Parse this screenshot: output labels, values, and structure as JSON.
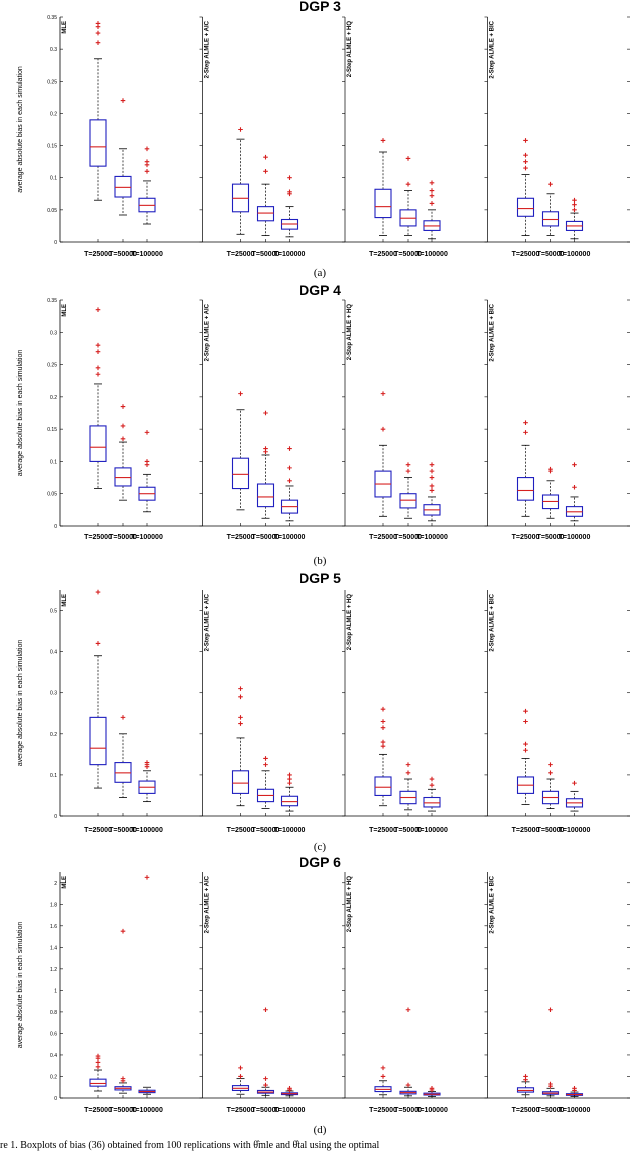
{
  "caption": "re 1. Boxplots of bias (36) obtained from 100 replications with  θ̂mle and θ̂tal using the optimal",
  "colors": {
    "box": "#1f1fbf",
    "median": "#d62020",
    "outlier": "#d62020",
    "whisker": "#000000"
  },
  "chart_data": [
    {
      "type": "boxplot",
      "title": "DGP 3",
      "subtitle": "(a)",
      "ylabel": "average absolute bias in each simulation",
      "ylim": [
        0,
        0.35
      ],
      "yticks": [
        0,
        0.05,
        0.1,
        0.15,
        0.2,
        0.25,
        0.3,
        0.35
      ],
      "ytick_labels": [
        "0",
        "0.05",
        "0.1",
        "0.15",
        "0.2",
        "0.25",
        "0.3",
        "0.35"
      ],
      "categories": [
        "T=25000",
        "T=50000",
        "T=100000"
      ],
      "panels": [
        {
          "label": "MLE",
          "boxes": [
            {
              "min": 0.065,
              "q1": 0.118,
              "median": 0.148,
              "q3": 0.19,
              "max": 0.285,
              "outliers": [
                0.31,
                0.325,
                0.335,
                0.34
              ]
            },
            {
              "min": 0.042,
              "q1": 0.07,
              "median": 0.085,
              "q3": 0.102,
              "max": 0.145,
              "outliers": [
                0.22
              ]
            },
            {
              "min": 0.028,
              "q1": 0.047,
              "median": 0.057,
              "q3": 0.068,
              "max": 0.095,
              "outliers": [
                0.11,
                0.12,
                0.125,
                0.145
              ]
            }
          ]
        },
        {
          "label": "2-Step ALMLE + AIC",
          "boxes": [
            {
              "min": 0.012,
              "q1": 0.047,
              "median": 0.068,
              "q3": 0.09,
              "max": 0.16,
              "outliers": [
                0.175
              ]
            },
            {
              "min": 0.01,
              "q1": 0.033,
              "median": 0.045,
              "q3": 0.055,
              "max": 0.09,
              "outliers": [
                0.11,
                0.132
              ]
            },
            {
              "min": 0.008,
              "q1": 0.02,
              "median": 0.028,
              "q3": 0.035,
              "max": 0.055,
              "outliers": [
                0.075,
                0.078,
                0.1
              ]
            }
          ]
        },
        {
          "label": "2-Step ALMLE + HQ",
          "boxes": [
            {
              "min": 0.01,
              "q1": 0.038,
              "median": 0.055,
              "q3": 0.082,
              "max": 0.14,
              "outliers": [
                0.158
              ]
            },
            {
              "min": 0.01,
              "q1": 0.025,
              "median": 0.037,
              "q3": 0.05,
              "max": 0.08,
              "outliers": [
                0.09,
                0.13
              ]
            },
            {
              "min": 0.005,
              "q1": 0.018,
              "median": 0.025,
              "q3": 0.033,
              "max": 0.05,
              "outliers": [
                0.06,
                0.072,
                0.08,
                0.092
              ]
            }
          ]
        },
        {
          "label": "2-Step ALMLE + BIC",
          "boxes": [
            {
              "min": 0.01,
              "q1": 0.04,
              "median": 0.052,
              "q3": 0.068,
              "max": 0.105,
              "outliers": [
                0.115,
                0.125,
                0.135,
                0.158
              ]
            },
            {
              "min": 0.01,
              "q1": 0.025,
              "median": 0.035,
              "q3": 0.047,
              "max": 0.075,
              "outliers": [
                0.09
              ]
            },
            {
              "min": 0.005,
              "q1": 0.018,
              "median": 0.025,
              "q3": 0.032,
              "max": 0.045,
              "outliers": [
                0.05,
                0.058,
                0.065
              ]
            }
          ]
        }
      ]
    },
    {
      "type": "boxplot",
      "title": "DGP 4",
      "subtitle": "(b)",
      "ylabel": "average absolute bias in each simulation",
      "ylim": [
        0,
        0.35
      ],
      "yticks": [
        0,
        0.05,
        0.1,
        0.15,
        0.2,
        0.25,
        0.3,
        0.35
      ],
      "ytick_labels": [
        "0",
        "0.05",
        "0.1",
        "0.15",
        "0.2",
        "0.25",
        "0.3",
        "0.35"
      ],
      "categories": [
        "T=25000",
        "T=50000",
        "T=100000"
      ],
      "panels": [
        {
          "label": "MLE",
          "boxes": [
            {
              "min": 0.058,
              "q1": 0.1,
              "median": 0.122,
              "q3": 0.155,
              "max": 0.22,
              "outliers": [
                0.235,
                0.245,
                0.27,
                0.28,
                0.335
              ]
            },
            {
              "min": 0.04,
              "q1": 0.062,
              "median": 0.075,
              "q3": 0.09,
              "max": 0.13,
              "outliers": [
                0.135,
                0.155,
                0.185
              ]
            },
            {
              "min": 0.022,
              "q1": 0.04,
              "median": 0.05,
              "q3": 0.06,
              "max": 0.08,
              "outliers": [
                0.095,
                0.1,
                0.145
              ]
            }
          ]
        },
        {
          "label": "2-Step ALMLE + AIC",
          "boxes": [
            {
              "min": 0.025,
              "q1": 0.058,
              "median": 0.08,
              "q3": 0.105,
              "max": 0.18,
              "outliers": [
                0.205
              ]
            },
            {
              "min": 0.012,
              "q1": 0.03,
              "median": 0.045,
              "q3": 0.065,
              "max": 0.11,
              "outliers": [
                0.115,
                0.12,
                0.175
              ]
            },
            {
              "min": 0.008,
              "q1": 0.02,
              "median": 0.03,
              "q3": 0.04,
              "max": 0.062,
              "outliers": [
                0.07,
                0.09,
                0.12
              ]
            }
          ]
        },
        {
          "label": "2-Step ALMLE + HQ",
          "boxes": [
            {
              "min": 0.015,
              "q1": 0.045,
              "median": 0.065,
              "q3": 0.085,
              "max": 0.125,
              "outliers": [
                0.15,
                0.205
              ]
            },
            {
              "min": 0.012,
              "q1": 0.028,
              "median": 0.04,
              "q3": 0.05,
              "max": 0.075,
              "outliers": [
                0.085,
                0.095
              ]
            },
            {
              "min": 0.008,
              "q1": 0.017,
              "median": 0.025,
              "q3": 0.033,
              "max": 0.045,
              "outliers": [
                0.055,
                0.062,
                0.075,
                0.085,
                0.095
              ]
            }
          ]
        },
        {
          "label": "2-Step ALMLE + BIC",
          "boxes": [
            {
              "min": 0.015,
              "q1": 0.04,
              "median": 0.055,
              "q3": 0.075,
              "max": 0.125,
              "outliers": [
                0.145,
                0.16
              ]
            },
            {
              "min": 0.012,
              "q1": 0.027,
              "median": 0.038,
              "q3": 0.048,
              "max": 0.07,
              "outliers": [
                0.085,
                0.088
              ]
            },
            {
              "min": 0.008,
              "q1": 0.015,
              "median": 0.022,
              "q3": 0.03,
              "max": 0.045,
              "outliers": [
                0.06,
                0.095
              ]
            }
          ]
        }
      ]
    },
    {
      "type": "boxplot",
      "title": "DGP 5",
      "subtitle": "(c)",
      "ylabel": "average absolute bias in each simulation",
      "ylim": [
        0,
        0.55
      ],
      "yticks": [
        0,
        0.1,
        0.2,
        0.3,
        0.4,
        0.5
      ],
      "ytick_labels": [
        "0",
        "0.1",
        "0.2",
        "0.3",
        "0.4",
        "0.5"
      ],
      "categories": [
        "T=25000",
        "T=50000",
        "T=100000"
      ],
      "panels": [
        {
          "label": "MLE",
          "boxes": [
            {
              "min": 0.068,
              "q1": 0.125,
              "median": 0.165,
              "q3": 0.24,
              "max": 0.39,
              "outliers": [
                0.42,
                0.545
              ]
            },
            {
              "min": 0.045,
              "q1": 0.082,
              "median": 0.105,
              "q3": 0.13,
              "max": 0.2,
              "outliers": [
                0.24
              ]
            },
            {
              "min": 0.035,
              "q1": 0.055,
              "median": 0.07,
              "q3": 0.085,
              "max": 0.11,
              "outliers": [
                0.12,
                0.125,
                0.13
              ]
            }
          ]
        },
        {
          "label": "2-Step ALMLE + AIC",
          "boxes": [
            {
              "min": 0.025,
              "q1": 0.055,
              "median": 0.08,
              "q3": 0.11,
              "max": 0.19,
              "outliers": [
                0.225,
                0.24,
                0.29,
                0.31
              ]
            },
            {
              "min": 0.018,
              "q1": 0.035,
              "median": 0.05,
              "q3": 0.065,
              "max": 0.11,
              "outliers": [
                0.125,
                0.14
              ]
            },
            {
              "min": 0.012,
              "q1": 0.025,
              "median": 0.035,
              "q3": 0.048,
              "max": 0.07,
              "outliers": [
                0.08,
                0.09,
                0.1
              ]
            }
          ]
        },
        {
          "label": "2-Step ALMLE + HQ",
          "boxes": [
            {
              "min": 0.025,
              "q1": 0.05,
              "median": 0.07,
              "q3": 0.095,
              "max": 0.15,
              "outliers": [
                0.17,
                0.18,
                0.215,
                0.23,
                0.26
              ]
            },
            {
              "min": 0.015,
              "q1": 0.03,
              "median": 0.045,
              "q3": 0.06,
              "max": 0.09,
              "outliers": [
                0.105,
                0.125
              ]
            },
            {
              "min": 0.012,
              "q1": 0.022,
              "median": 0.032,
              "q3": 0.045,
              "max": 0.065,
              "outliers": [
                0.075,
                0.09
              ]
            }
          ]
        },
        {
          "label": "2-Step ALMLE + BIC",
          "boxes": [
            {
              "min": 0.028,
              "q1": 0.055,
              "median": 0.075,
              "q3": 0.095,
              "max": 0.14,
              "outliers": [
                0.16,
                0.175,
                0.23,
                0.255
              ]
            },
            {
              "min": 0.018,
              "q1": 0.03,
              "median": 0.045,
              "q3": 0.06,
              "max": 0.09,
              "outliers": [
                0.105,
                0.125
              ]
            },
            {
              "min": 0.012,
              "q1": 0.022,
              "median": 0.032,
              "q3": 0.042,
              "max": 0.06,
              "outliers": [
                0.08
              ]
            }
          ]
        }
      ]
    },
    {
      "type": "boxplot",
      "title": "DGP 6",
      "subtitle": "(d)",
      "ylabel": "average absolute bias in each simulation",
      "ylim": [
        0,
        2.1
      ],
      "yticks": [
        0,
        0.2,
        0.4,
        0.6,
        0.8,
        1,
        1.2,
        1.4,
        1.6,
        1.8,
        2
      ],
      "ytick_labels": [
        "0",
        "0.2",
        "0.4",
        "0.6",
        "0.8",
        "1",
        "1.2",
        "1.4",
        "1.6",
        "1.8",
        "2"
      ],
      "categories": [
        "T=25000",
        "T=50000",
        "T=100000"
      ],
      "panels": [
        {
          "label": "MLE",
          "boxes": [
            {
              "min": 0.065,
              "q1": 0.11,
              "median": 0.135,
              "q3": 0.175,
              "max": 0.26,
              "outliers": [
                0.29,
                0.33,
                0.37,
                0.39
              ]
            },
            {
              "min": 0.045,
              "q1": 0.075,
              "median": 0.09,
              "q3": 0.105,
              "max": 0.14,
              "outliers": [
                0.16,
                0.18,
                1.55
              ]
            },
            {
              "min": 0.035,
              "q1": 0.05,
              "median": 0.06,
              "q3": 0.072,
              "max": 0.1,
              "outliers": [
                2.05
              ]
            }
          ]
        },
        {
          "label": "2-Step ALMLE + AIC",
          "boxes": [
            {
              "min": 0.035,
              "q1": 0.07,
              "median": 0.09,
              "q3": 0.115,
              "max": 0.18,
              "outliers": [
                0.2,
                0.28
              ]
            },
            {
              "min": 0.025,
              "q1": 0.045,
              "median": 0.055,
              "q3": 0.07,
              "max": 0.1,
              "outliers": [
                0.12,
                0.18,
                0.82
              ]
            },
            {
              "min": 0.02,
              "q1": 0.032,
              "median": 0.04,
              "q3": 0.048,
              "max": 0.065,
              "outliers": [
                0.075,
                0.09
              ]
            }
          ]
        },
        {
          "label": "2-Step ALMLE + HQ",
          "boxes": [
            {
              "min": 0.03,
              "q1": 0.06,
              "median": 0.08,
              "q3": 0.105,
              "max": 0.16,
              "outliers": [
                0.2,
                0.28
              ]
            },
            {
              "min": 0.02,
              "q1": 0.038,
              "median": 0.05,
              "q3": 0.062,
              "max": 0.1,
              "outliers": [
                0.12,
                0.82
              ]
            },
            {
              "min": 0.015,
              "q1": 0.028,
              "median": 0.035,
              "q3": 0.045,
              "max": 0.06,
              "outliers": [
                0.075,
                0.09
              ]
            }
          ]
        },
        {
          "label": "2-Step ALMLE + BIC",
          "boxes": [
            {
              "min": 0.03,
              "q1": 0.055,
              "median": 0.07,
              "q3": 0.095,
              "max": 0.15,
              "outliers": [
                0.17,
                0.2
              ]
            },
            {
              "min": 0.02,
              "q1": 0.035,
              "median": 0.045,
              "q3": 0.058,
              "max": 0.09,
              "outliers": [
                0.11,
                0.13,
                0.82
              ]
            },
            {
              "min": 0.015,
              "q1": 0.025,
              "median": 0.032,
              "q3": 0.04,
              "max": 0.055,
              "outliers": [
                0.07,
                0.09
              ]
            }
          ]
        }
      ]
    }
  ]
}
